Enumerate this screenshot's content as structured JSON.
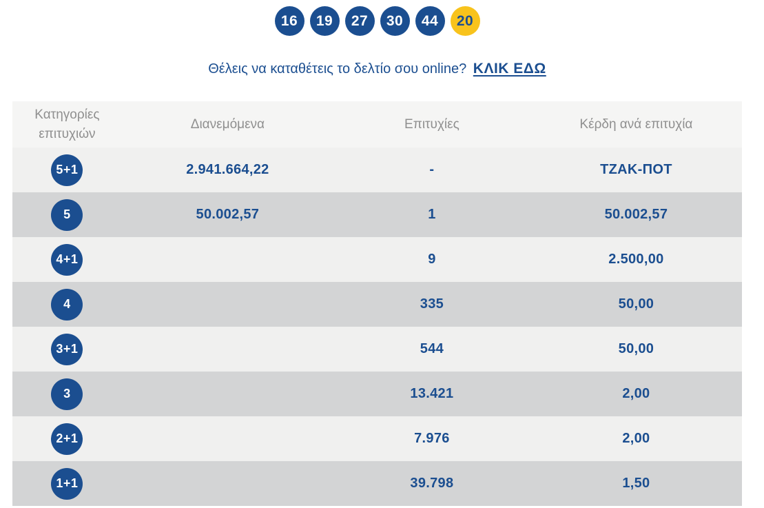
{
  "drawn_numbers": {
    "main": [
      "16",
      "19",
      "27",
      "30",
      "44"
    ],
    "bonus": "20"
  },
  "promo": {
    "text": "Θέλεις να καταθέτεις το δελτίο σου online?",
    "link_label": "ΚΛΙΚ ΕΔΩ"
  },
  "table": {
    "headers": {
      "category": "Κατηγορίες επιτυχιών",
      "distributed": "Διανεμόμενα",
      "winners": "Επιτυχίες",
      "prize": "Κέρδη ανά επιτυχία"
    },
    "rows": [
      {
        "category": "5+1",
        "distributed": "2.941.664,22",
        "winners": "-",
        "prize": "ΤΖΑΚ-ΠΟΤ"
      },
      {
        "category": "5",
        "distributed": "50.002,57",
        "winners": "1",
        "prize": "50.002,57"
      },
      {
        "category": "4+1",
        "distributed": "",
        "winners": "9",
        "prize": "2.500,00"
      },
      {
        "category": "4",
        "distributed": "",
        "winners": "335",
        "prize": "50,00"
      },
      {
        "category": "3+1",
        "distributed": "",
        "winners": "544",
        "prize": "50,00"
      },
      {
        "category": "3",
        "distributed": "",
        "winners": "13.421",
        "prize": "2,00"
      },
      {
        "category": "2+1",
        "distributed": "",
        "winners": "7.976",
        "prize": "2,00"
      },
      {
        "category": "1+1",
        "distributed": "",
        "winners": "39.798",
        "prize": "1,50"
      }
    ]
  },
  "colors": {
    "primary_blue": "#1b4e90",
    "bonus_yellow": "#f8c31c",
    "header_bg": "#f5f5f4",
    "row_light_bg": "#f0f0ef",
    "row_dark_bg": "#d3d4d5",
    "header_text": "#8f8f8f"
  }
}
